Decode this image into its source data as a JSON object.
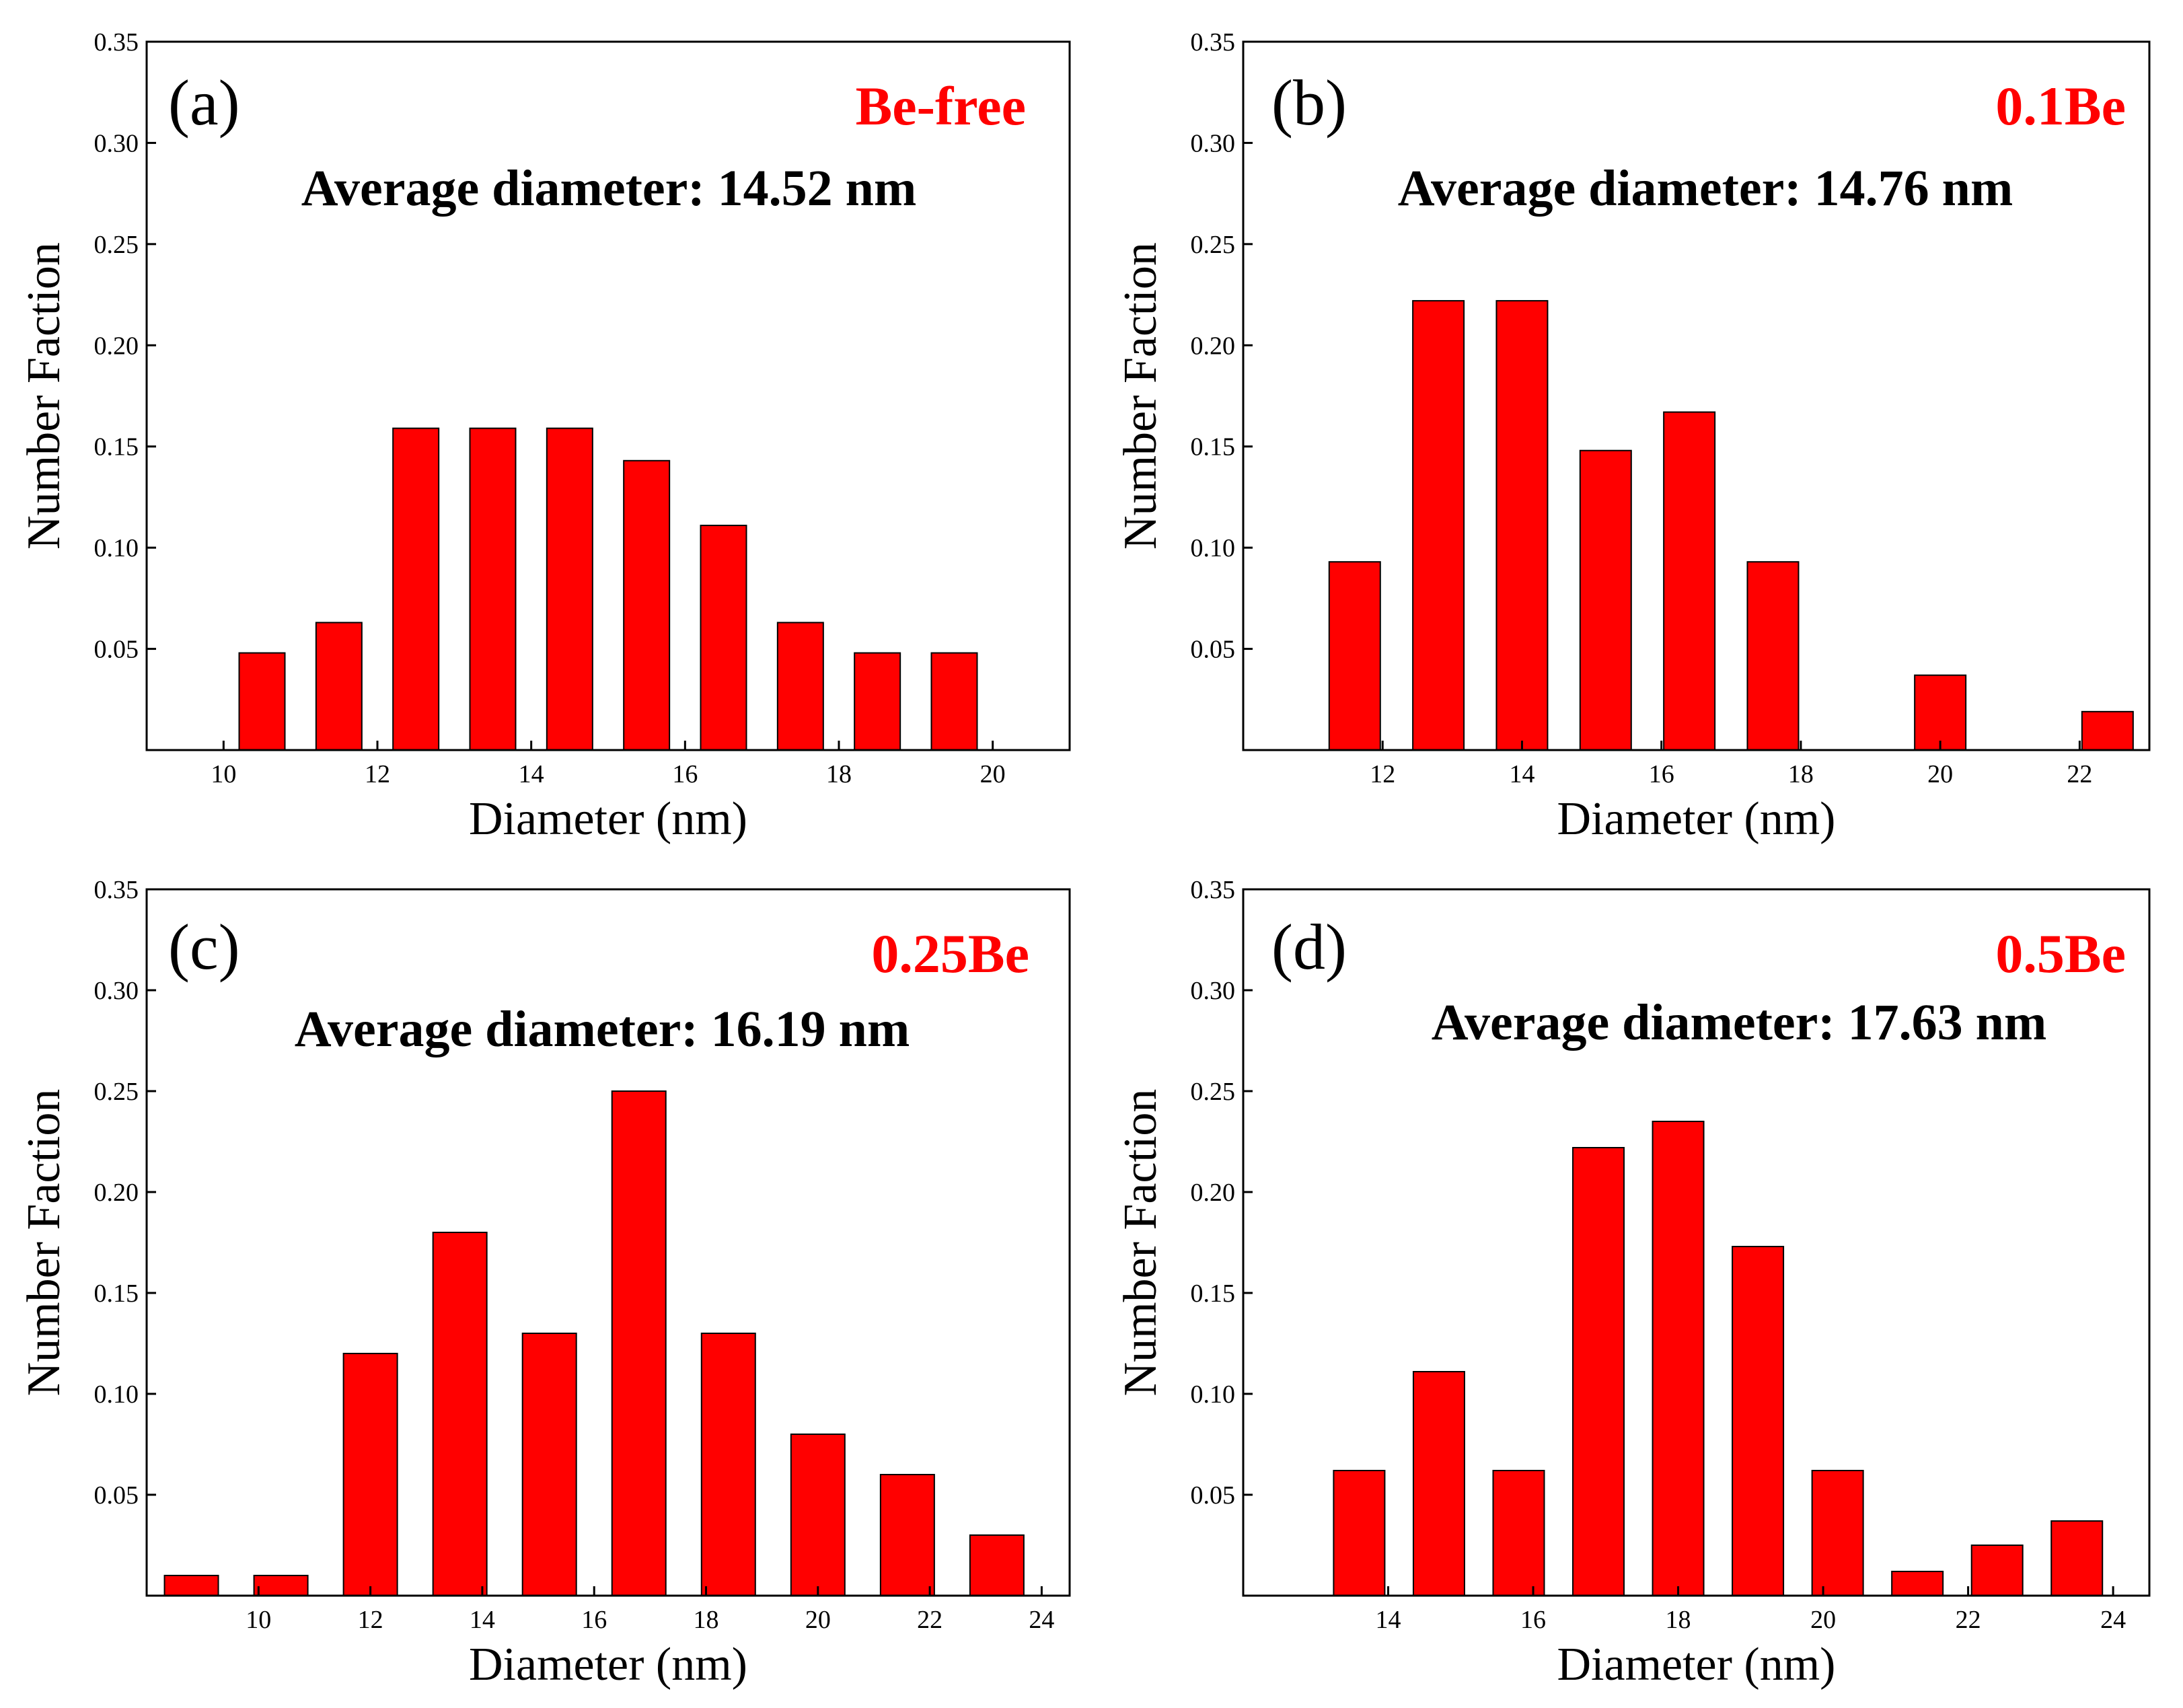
{
  "chart_data": [
    {
      "type": "bar",
      "panel_label": "(a)",
      "sample_label": "Be-free",
      "annotation": "Average diameter: 14.52 nm",
      "xlabel": "Diameter (nm)",
      "ylabel": "Number Faction",
      "xlim": [
        9,
        21
      ],
      "ylim": [
        0,
        0.35
      ],
      "xticks": [
        10,
        12,
        14,
        16,
        18,
        20
      ],
      "yticks": [
        0.05,
        0.1,
        0.15,
        0.2,
        0.25,
        0.3,
        0.35
      ],
      "x": [
        10.5,
        11.5,
        12.5,
        13.5,
        14.5,
        15.5,
        16.5,
        17.5,
        18.5,
        19.5
      ],
      "values": [
        0.048,
        0.063,
        0.159,
        0.159,
        0.159,
        0.143,
        0.111,
        0.063,
        0.048,
        0.048
      ],
      "bar_color": "#ff0000",
      "sample_color": "#ff0000"
    },
    {
      "type": "bar",
      "panel_label": "(b)",
      "sample_label": "0.1Be",
      "annotation": "Average diameter: 14.76 nm",
      "xlabel": "Diameter (nm)",
      "ylabel": "Number Faction",
      "xlim": [
        10,
        23
      ],
      "ylim": [
        0,
        0.35
      ],
      "xticks": [
        12,
        14,
        16,
        18,
        20,
        22
      ],
      "yticks": [
        0.05,
        0.1,
        0.15,
        0.2,
        0.25,
        0.3,
        0.35
      ],
      "x": [
        11.6,
        12.8,
        14.0,
        15.2,
        16.4,
        17.6,
        20.0,
        22.4
      ],
      "values": [
        0.093,
        0.222,
        0.222,
        0.148,
        0.167,
        0.093,
        0.037,
        0.019
      ],
      "bar_color": "#ff0000",
      "sample_color": "#ff0000"
    },
    {
      "type": "bar",
      "panel_label": "(c)",
      "sample_label": "0.25Be",
      "annotation": "Average diameter: 16.19 nm",
      "xlabel": "Diameter (nm)",
      "ylabel": "Number Faction",
      "xlim": [
        8,
        24.5
      ],
      "ylim": [
        0,
        0.35
      ],
      "xticks": [
        10,
        12,
        14,
        16,
        18,
        20,
        22,
        24
      ],
      "yticks": [
        0.05,
        0.1,
        0.15,
        0.2,
        0.25,
        0.3,
        0.35
      ],
      "x": [
        8.8,
        10.4,
        12.0,
        13.6,
        15.2,
        16.8,
        18.4,
        20.0,
        21.6,
        23.2
      ],
      "values": [
        0.01,
        0.01,
        0.12,
        0.18,
        0.13,
        0.25,
        0.13,
        0.08,
        0.06,
        0.03
      ],
      "bar_color": "#ff0000",
      "sample_color": "#ff0000"
    },
    {
      "type": "bar",
      "panel_label": "(d)",
      "sample_label": "0.5Be",
      "annotation": "Average diameter: 17.63 nm",
      "xlabel": "Diameter (nm)",
      "ylabel": "Number Faction",
      "xlim": [
        12,
        24.5
      ],
      "ylim": [
        0,
        0.35
      ],
      "xticks": [
        14,
        16,
        18,
        20,
        22,
        24
      ],
      "yticks": [
        0.05,
        0.1,
        0.15,
        0.2,
        0.25,
        0.3,
        0.35
      ],
      "x": [
        13.6,
        14.7,
        15.8,
        16.9,
        18.0,
        19.1,
        20.2,
        21.3,
        22.4,
        23.5
      ],
      "values": [
        0.062,
        0.111,
        0.062,
        0.222,
        0.235,
        0.173,
        0.062,
        0.012,
        0.025,
        0.037
      ],
      "bar_color": "#ff0000",
      "sample_color": "#ff0000"
    }
  ]
}
